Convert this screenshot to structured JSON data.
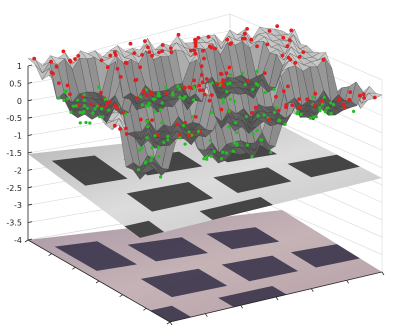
{
  "chart_data": {
    "type": "surface",
    "title": "",
    "xlabel": "",
    "ylabel": "",
    "zlabel": "",
    "zlim": [
      -4,
      1
    ],
    "z_ticks": [
      {
        "value": 1,
        "label": "1"
      },
      {
        "value": 0.5,
        "label": "0.5"
      },
      {
        "value": 0,
        "label": "0"
      },
      {
        "value": -0.5,
        "label": "-0.5"
      },
      {
        "value": -1,
        "label": "-1"
      },
      {
        "value": -1.5,
        "label": "-1.5"
      },
      {
        "value": -2,
        "label": "-2"
      },
      {
        "value": -2.5,
        "label": "-2.5"
      },
      {
        "value": -3,
        "label": "-3"
      },
      {
        "value": -3.5,
        "label": "-3.5"
      },
      {
        "value": -4,
        "label": "-4"
      }
    ],
    "grid": true,
    "layers": [
      {
        "name": "surface-mesh",
        "z_range": [
          -1.5,
          1
        ],
        "style": "grayscale mesh with markers"
      },
      {
        "name": "grayscale-image",
        "z_level": -1.5,
        "style": "grayscale image"
      },
      {
        "name": "color-image",
        "z_level": -4,
        "style": "rgb image"
      }
    ],
    "marker_colors": {
      "upper": "#e02020",
      "lower": "#20c020"
    },
    "colors": {
      "mesh_light": "#d8d8d8",
      "mesh_dark": "#2a2a2a",
      "gray_bg": "#c9c9c9",
      "gray_bar": "#2b2b2b",
      "color_bg": "#b9a4ac",
      "color_bar": "#2a2740"
    }
  }
}
